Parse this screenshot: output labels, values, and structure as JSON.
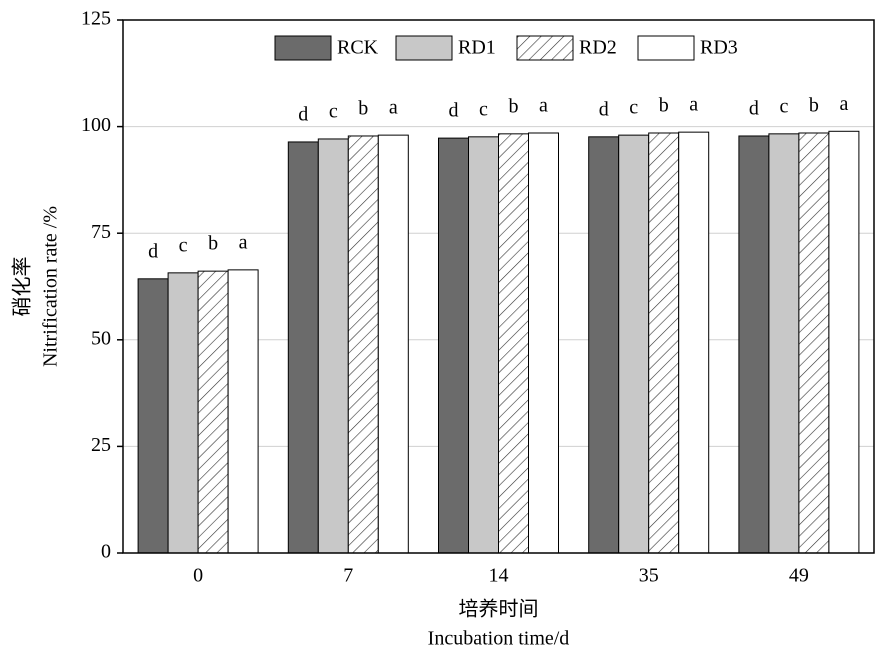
{
  "chart_data": {
    "type": "bar",
    "x_label": [
      "培养时间",
      "Incubation time/d"
    ],
    "y_label": [
      "硝化率",
      "Nitrification rate /%"
    ],
    "categories": [
      "0",
      "7",
      "14",
      "35",
      "49"
    ],
    "series": [
      {
        "name": "RCK",
        "color": "#6b6b6b",
        "values": [
          64.3,
          96.4,
          97.3,
          97.6,
          97.8
        ],
        "labels": [
          "d",
          "d",
          "d",
          "d",
          "d"
        ]
      },
      {
        "name": "RD1",
        "color": "#c8c8c8",
        "values": [
          65.7,
          97.1,
          97.6,
          98.0,
          98.3
        ],
        "labels": [
          "c",
          "c",
          "c",
          "c",
          "c"
        ]
      },
      {
        "name": "RD2",
        "color": "#ffffff",
        "pattern": "hatch",
        "values": [
          66.1,
          97.8,
          98.3,
          98.5,
          98.5
        ],
        "labels": [
          "b",
          "b",
          "b",
          "b",
          "b"
        ]
      },
      {
        "name": "RD3",
        "color": "#ffffff",
        "values": [
          66.4,
          98.0,
          98.5,
          98.7,
          98.9
        ],
        "labels": [
          "a",
          "a",
          "a",
          "a",
          "a"
        ]
      }
    ],
    "ylim": [
      0,
      125
    ],
    "yticks": [
      0,
      25,
      50,
      75,
      100,
      125
    ],
    "grid": true,
    "legend": "top"
  }
}
